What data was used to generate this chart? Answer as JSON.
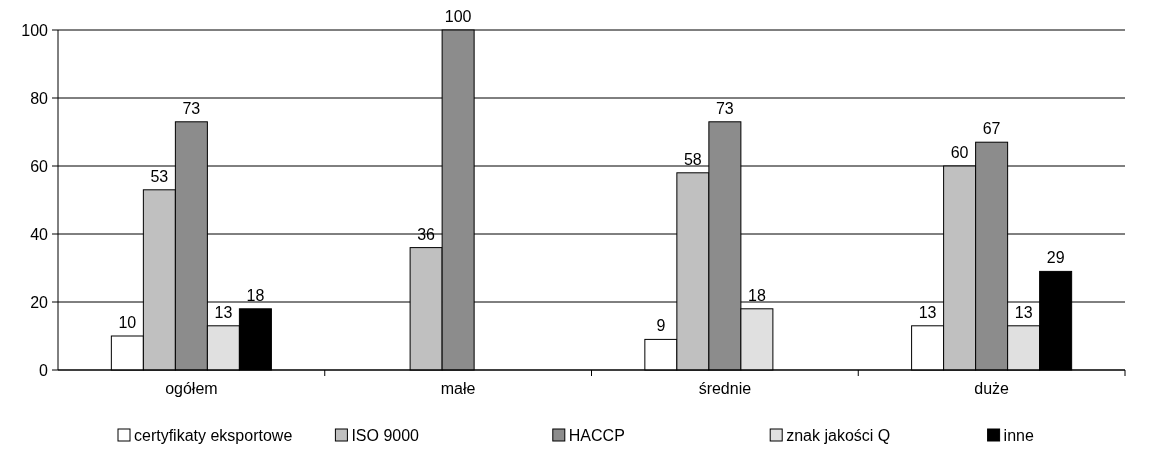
{
  "chart_data": {
    "type": "bar",
    "categories": [
      "ogółem",
      "małe",
      "średnie",
      "duże"
    ],
    "series": [
      {
        "name": "certyfikaty eksportowe",
        "color": "#ffffff",
        "values": [
          10,
          null,
          9,
          13
        ]
      },
      {
        "name": "ISO 9000",
        "color": "#c0c0c0",
        "values": [
          53,
          36,
          58,
          60
        ]
      },
      {
        "name": "HACCP",
        "color": "#8c8c8c",
        "values": [
          73,
          100,
          73,
          67
        ]
      },
      {
        "name": "znak jakości Q",
        "color": "#e0e0e0",
        "values": [
          13,
          null,
          18,
          13
        ]
      },
      {
        "name": "inne",
        "color": "#000000",
        "values": [
          18,
          null,
          null,
          29
        ]
      }
    ],
    "ylim": [
      0,
      100
    ],
    "yticks": [
      0,
      20,
      40,
      60,
      80,
      100
    ],
    "grid": "y",
    "legend": "bottom",
    "data_labels": true
  }
}
